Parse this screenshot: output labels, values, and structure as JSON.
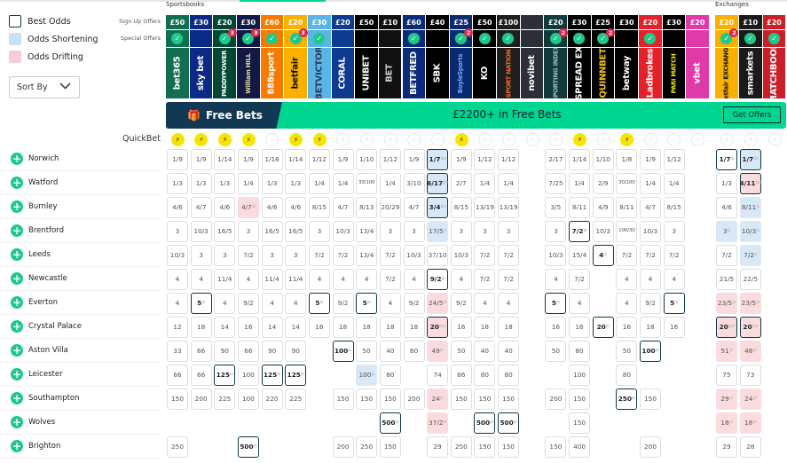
{
  "sections": {
    "sportsbooks": "Sportsbooks",
    "exchanges": "Exchanges"
  },
  "legend": {
    "best": "Best Odds",
    "shortening": "Odds Shortening",
    "drifting": "Odds Drifting"
  },
  "colors": {
    "best": "#0f3844",
    "shortening": "#d8e8f6",
    "drifting": "#fadcdf",
    "accent": "#00d68f",
    "quickbet": "#f7e400"
  },
  "sort_by": "Sort By",
  "row_labels": {
    "signup": "Sign Up Offers",
    "special": "Special Offers",
    "quickbet": "QuickBet"
  },
  "banner": {
    "title": "Free Bets",
    "message": "£2200+ in Free Bets",
    "button": "Get Offers"
  },
  "bookmakers": [
    {
      "name": "bet365",
      "offer": "£50",
      "bg": "#126e51",
      "fg": "#fff",
      "check": true,
      "badge": "",
      "quickbet": true
    },
    {
      "name": "sky bet",
      "offer": "£30",
      "bg": "#0b2a86",
      "fg": "#fff",
      "check": false,
      "badge": "",
      "quickbet": true
    },
    {
      "name": "PADDYPOWER",
      "offer": "£20",
      "bg": "#004833",
      "fg": "#fff",
      "check": true,
      "badge": "3",
      "quickbet": true
    },
    {
      "name": "William HILL",
      "offer": "£30",
      "bg": "#111a45",
      "fg": "#e8d9a0",
      "check": true,
      "badge": "3",
      "quickbet": true
    },
    {
      "name": "888sport",
      "offer": "£60",
      "bg": "#f77b00",
      "fg": "#fff",
      "check": true,
      "badge": "",
      "quickbet": false
    },
    {
      "name": "betfair",
      "offer": "£20",
      "bg": "#f9b000",
      "fg": "#111",
      "check": true,
      "badge": "3",
      "quickbet": true
    },
    {
      "name": "BETVICTOR",
      "offer": "£30",
      "bg": "#5ab4e5",
      "fg": "#2a3f5a",
      "check": true,
      "badge": "",
      "quickbet": true
    },
    {
      "name": "CORAL",
      "offer": "£20",
      "bg": "#0e3a8f",
      "fg": "#fff",
      "check": false,
      "badge": "",
      "quickbet": false
    },
    {
      "name": "UNIBET",
      "offer": "£50",
      "bg": "#000",
      "fg": "#fff",
      "check": false,
      "badge": "",
      "quickbet": false
    },
    {
      "name": "BET",
      "offer": "£10",
      "bg": "#111",
      "fg": "#ccc",
      "check": false,
      "badge": "",
      "quickbet": false
    },
    {
      "name": "BETFRED",
      "offer": "£60",
      "bg": "#0a2a7a",
      "fg": "#fff",
      "check": true,
      "badge": "",
      "quickbet": false
    },
    {
      "name": "SBK",
      "offer": "£40",
      "bg": "#000",
      "fg": "#fff",
      "check": false,
      "badge": "",
      "quickbet": false
    },
    {
      "name": "BoyleSports",
      "offer": "£25",
      "bg": "#0a2a70",
      "fg": "#6fa8ff",
      "check": true,
      "badge": "2",
      "quickbet": true
    },
    {
      "name": "KO",
      "offer": "£50",
      "bg": "#000",
      "fg": "#fff",
      "check": true,
      "badge": "",
      "quickbet": false
    },
    {
      "name": "SPORT NATION",
      "offer": "£100",
      "bg": "#1e1e1e",
      "fg": "#f26b2b",
      "check": true,
      "badge": "",
      "quickbet": false
    },
    {
      "name": "novibet",
      "offer": "",
      "bg": "#2c2f36",
      "fg": "#fff",
      "check": false,
      "badge": "",
      "quickbet": false
    },
    {
      "name": "SPORTING INDEX",
      "offer": "£20",
      "bg": "#123a3a",
      "fg": "#9bc",
      "check": true,
      "badge": "2",
      "quickbet": false
    },
    {
      "name": "SPREAD EX",
      "offer": "£30",
      "bg": "#000",
      "fg": "#fff",
      "check": true,
      "badge": "",
      "quickbet": true
    },
    {
      "name": "QUINNBET",
      "offer": "£25",
      "bg": "#000",
      "fg": "#f2c21a",
      "check": true,
      "badge": "2",
      "quickbet": false
    },
    {
      "name": "betway",
      "offer": "£30",
      "bg": "#000",
      "fg": "#fff",
      "check": false,
      "badge": "",
      "quickbet": true
    },
    {
      "name": "Ladbrokes",
      "offer": "£20",
      "bg": "#e4202a",
      "fg": "#fff",
      "check": true,
      "badge": "",
      "quickbet": false
    },
    {
      "name": "PARI MATCH",
      "offer": "£30",
      "bg": "#000",
      "fg": "#f2e600",
      "check": false,
      "badge": "",
      "quickbet": false
    },
    {
      "name": "vbet",
      "offer": "£20",
      "bg": "#e03aa9",
      "fg": "#fff",
      "check": false,
      "badge": "",
      "quickbet": false
    }
  ],
  "exchanges": [
    {
      "name": "betfair EXCHANGE",
      "offer": "£20",
      "bg": "#f9b000",
      "fg": "#111",
      "check": true,
      "badge": "2",
      "quickbet": false
    },
    {
      "name": "smarkets",
      "offer": "£10",
      "bg": "#1a1a1a",
      "fg": "#fff",
      "check": true,
      "badge": "",
      "quickbet": false
    },
    {
      "name": "MATCHBOOK",
      "offer": "£20",
      "bg": "#c9202a",
      "fg": "#fff",
      "check": true,
      "badge": "",
      "quickbet": false
    }
  ],
  "rows": [
    {
      "team": "Norwich",
      "odds": [
        "1/9",
        "1/9",
        "1/14",
        "1/9",
        "1/16",
        "1/14",
        "1/12",
        "1/9",
        "1/10",
        "1/12",
        "1/9",
        "1/7|bs",
        "1/9",
        "1/12",
        "1/12",
        "",
        "2/17",
        "1/14",
        "1/10",
        "1/8",
        "1/9",
        "1/12",
        ""
      ],
      "ex": [
        "1/7|b",
        "1/7|bs",
        ""
      ]
    },
    {
      "team": "Watford",
      "odds": [
        "1/3",
        "1/3",
        "1/3",
        "1/4",
        "1/3",
        "1/3",
        "1/4",
        "1/4",
        "33/100",
        "1/4",
        "3/10",
        "6/17|bs",
        "2/7",
        "1/4",
        "1/4",
        "",
        "7/25",
        "1/4",
        "2/9",
        "30/100",
        "1/4",
        "1/4",
        ""
      ],
      "ex": [
        "1/3",
        "4/11|bd",
        ""
      ]
    },
    {
      "team": "Burnley",
      "odds": [
        "4/6",
        "4/7",
        "4/6",
        "4/7|d",
        "4/6",
        "4/6",
        "8/15",
        "4/7",
        "8/13",
        "20/29",
        "4/7",
        "3/4|bs",
        "8/15",
        "13/19",
        "13/19",
        "",
        "3/5",
        "8/11",
        "4/9",
        "8/11",
        "4/7",
        "8/15",
        ""
      ],
      "ex": [
        "4/6",
        "8/11|s",
        ""
      ]
    },
    {
      "team": "Brentford",
      "odds": [
        "3",
        "10/3",
        "16/5",
        "3",
        "16/5",
        "16/5",
        "3",
        "10/3",
        "13/4",
        "3",
        "3",
        "17/5|s",
        "3",
        "3",
        "3",
        "",
        "3",
        "7/2|b",
        "10/3",
        "100/30",
        "10/3",
        "3",
        ""
      ],
      "ex": [
        "3|s",
        "10/3|s",
        ""
      ]
    },
    {
      "team": "Leeds",
      "odds": [
        "10/3",
        "3",
        "3",
        "7/2",
        "3",
        "3",
        "7/2",
        "7/2",
        "13/4",
        "7/2",
        "10/3",
        "37/10",
        "10/3",
        "7/2",
        "7/2",
        "",
        "10/3",
        "15/4",
        "4|b",
        "7/2",
        "7/2",
        "7/2",
        ""
      ],
      "ex": [
        "7/2",
        "7/2|s",
        ""
      ]
    },
    {
      "team": "Newcastle",
      "odds": [
        "4",
        "4",
        "11/4",
        "4",
        "11/4",
        "11/4",
        "4",
        "4",
        "4",
        "7/2",
        "4",
        "9/2|b",
        "4",
        "7/2",
        "7/2",
        "",
        "4",
        "7/2",
        "",
        "4",
        "4",
        "4",
        ""
      ],
      "ex": [
        "21/5",
        "22/5",
        ""
      ]
    },
    {
      "team": "Everton",
      "odds": [
        "4",
        "5|b",
        "4",
        "9/2",
        "4",
        "4",
        "5|b",
        "9/2",
        "5|b",
        "4",
        "9/2",
        "24/5|d",
        "9/2",
        "4",
        "4",
        "",
        "5|b",
        "4",
        "",
        "4",
        "9/2",
        "5|b",
        ""
      ],
      "ex": [
        "23/5|d",
        "23/5|d",
        ""
      ]
    },
    {
      "team": "Crystal Palace",
      "odds": [
        "12",
        "18",
        "14",
        "16",
        "14",
        "14",
        "16",
        "18",
        "18",
        "18",
        "18",
        "20|bd",
        "16",
        "18",
        "18",
        "",
        "16",
        "16",
        "20|b",
        "16",
        "18",
        "16",
        ""
      ],
      "ex": [
        "20|bd",
        "20|bd",
        ""
      ]
    },
    {
      "team": "Aston Villa",
      "odds": [
        "33",
        "66",
        "90",
        "66",
        "90",
        "90",
        "",
        "100|b",
        "50",
        "40",
        "80",
        "49|d",
        "50",
        "40",
        "40",
        "",
        "50",
        "80",
        "",
        "50",
        "100|b",
        "",
        ""
      ],
      "ex": [
        "51|d",
        "48|d",
        ""
      ]
    },
    {
      "team": "Leicester",
      "odds": [
        "66",
        "66",
        "125|b",
        "100",
        "125|b",
        "125|b",
        "",
        "",
        "100|s",
        "80",
        "",
        "74",
        "66",
        "80",
        "80",
        "",
        "",
        "100",
        "",
        "80",
        "",
        "",
        ""
      ],
      "ex": [
        "75",
        "73",
        ""
      ]
    },
    {
      "team": "Southampton",
      "odds": [
        "150",
        "200",
        "225",
        "100",
        "220",
        "225",
        "",
        "150",
        "150",
        "150",
        "200",
        "24|d",
        "150",
        "150",
        "150",
        "",
        "200",
        "150",
        "",
        "250|b",
        "150",
        "",
        ""
      ],
      "ex": [
        "29|d",
        "24|d",
        ""
      ]
    },
    {
      "team": "Wolves",
      "odds": [
        "",
        "",
        "",
        "",
        "",
        "",
        "",
        "",
        "",
        "500|b",
        "",
        "37/2|d",
        "",
        "500|b",
        "500|b",
        "",
        "",
        "150",
        "",
        "",
        "",
        "",
        ""
      ],
      "ex": [
        "18|d",
        "18|d",
        ""
      ]
    },
    {
      "team": "Brighton",
      "odds": [
        "250",
        "",
        "",
        "500|b",
        "",
        "",
        "",
        "200",
        "250",
        "150",
        "",
        "29",
        "250",
        "150",
        "150",
        "",
        "150",
        "400",
        "",
        "",
        "200",
        "",
        ""
      ],
      "ex": [
        "29",
        "28",
        ""
      ]
    }
  ]
}
